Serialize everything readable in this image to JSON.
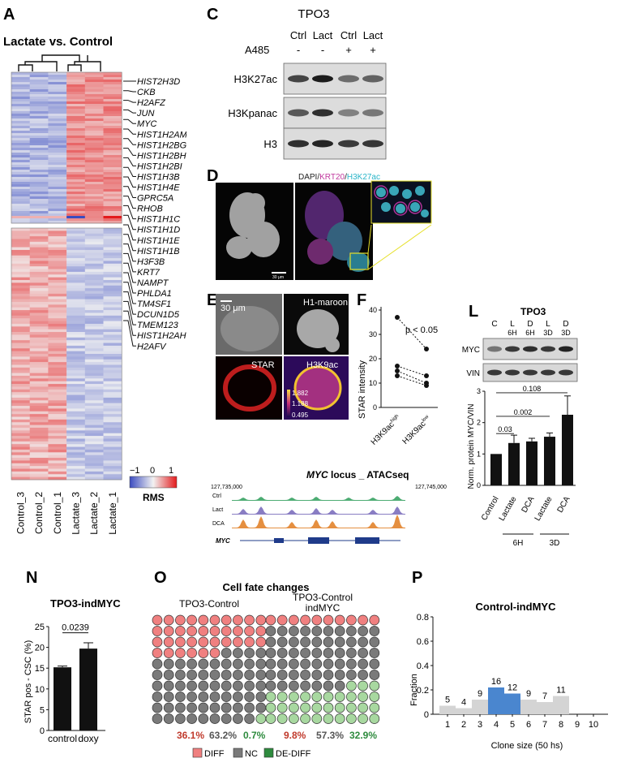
{
  "panels": {
    "A": {
      "letter": "A",
      "title": "Lactate vs. Control",
      "samples": [
        "Control_3",
        "Control_2",
        "Control_1",
        "Lactate_3",
        "Lactate_2",
        "Lactate_1"
      ],
      "genes": [
        "HIST2H3D",
        "CKB",
        "H2AFZ",
        "JUN",
        "MYC",
        "HIST1H2AM",
        "HIST1H2BG",
        "HIST1H2BH",
        "HIST1H2BI",
        "HIST1H3B",
        "HIST1H4E",
        "GPRC5A",
        "RHOB",
        "HIST1H1C",
        "HIST1H1D",
        "HIST1H1E",
        "HIST1H1B",
        "H3F3B",
        "KRT7",
        "NAMPT",
        "PHLDA1",
        "TM4SF1",
        "DCUN1D5",
        "TMEM123",
        "HIST1H2AH",
        "H2AFV"
      ],
      "scale_ticks": [
        "−1",
        "0",
        "1"
      ],
      "scale_label": "RMS",
      "scale_colors": [
        "#3b4cc0",
        "#f2f2f2",
        "#e31a1c"
      ]
    },
    "C": {
      "letter": "C",
      "title": "TPO3",
      "lanes": [
        "Ctrl",
        "Lact",
        "Ctrl",
        "Lact"
      ],
      "a485_label": "A485",
      "a485": [
        "-",
        "-",
        "+",
        "+"
      ],
      "blots": [
        "H3K27ac",
        "H3Kpanac",
        "H3"
      ]
    },
    "D": {
      "letter": "D",
      "stain": [
        "DAPI/",
        "KRT20",
        "/",
        "H3K27ac"
      ],
      "stain_colors": [
        "#222222",
        "#c0399e",
        "#222222",
        "#28b4c8"
      ],
      "scalebar": "30 μm"
    },
    "E": {
      "letter": "E",
      "scalebar": "30 μm",
      "labels": [
        "H1-maroon",
        "STAR",
        "H3K9ac"
      ],
      "intensity": [
        "1.882",
        "1.188",
        "0.495"
      ]
    },
    "F": {
      "letter": "F",
      "ylabel": "STAR intensity",
      "yticks": [
        "0",
        "10",
        "20",
        "30",
        "40"
      ],
      "pvalue": "p < 0.05",
      "x_labels": [
        [
          "H3K9ac",
          "high"
        ],
        [
          "H3K9ac",
          "low"
        ]
      ]
    },
    "L": {
      "letter": "L",
      "title": "TPO3",
      "lane_top": [
        "C",
        "L",
        "D",
        "L",
        "D"
      ],
      "lane_bot": [
        "",
        "6H",
        "6H",
        "3D",
        "3D"
      ],
      "blots": [
        "MYC",
        "VIN"
      ],
      "ylabel": "Norm. protein MYC/VIN",
      "yticks": [
        "0",
        "1",
        "2",
        "3"
      ],
      "categories": [
        "Control",
        "Lactate",
        "DCA",
        "Lactate",
        "DCA"
      ],
      "groups": [
        "6H",
        "3D"
      ],
      "pvalues": [
        "0.108",
        "0.002",
        "0.03"
      ]
    },
    "atac": {
      "title_italic": "MYC",
      "title_rest": " locus _ ATACseq",
      "coord_left": "127,735,000",
      "coord_right": "127,745,000",
      "tracks": [
        "Ctrl",
        "Lact",
        "DCA"
      ],
      "track_colors": [
        "#2e9e5a",
        "#7466b8",
        "#e07b1f"
      ],
      "gene": "MYC"
    },
    "N": {
      "letter": "N",
      "title": "TPO3-indMYC",
      "ylabel": "STAR pos - CSC (%)",
      "yticks": [
        "0",
        "5",
        "10",
        "15",
        "20",
        "25"
      ],
      "pvalue": "0.0239",
      "categories": [
        "control",
        "doxy"
      ]
    },
    "O": {
      "letter": "O",
      "title": "Cell fate changes",
      "groups": [
        {
          "title": [
            "TPO3-Control"
          ],
          "pct": [
            "36.1%",
            "63.2%",
            "0.7%"
          ]
        },
        {
          "title": [
            "TPO3-Control",
            "indMYC"
          ],
          "pct": [
            "9.8%",
            "57.3%",
            "32.9%"
          ]
        }
      ],
      "legend": [
        "DIFF",
        "NC",
        "DE-DIFF"
      ],
      "colors": {
        "diff": "#f08080",
        "nc": "#7a7a7a",
        "dediff": "#a8d8a0"
      },
      "pct_colors": [
        "#c0392b",
        "#555555",
        "#2e8b3e"
      ]
    },
    "P": {
      "letter": "P",
      "title": "Control-indMYC",
      "ylabel": "Fraction",
      "xlabel": "Clone size (50 hs)",
      "yticks": [
        "0",
        "0.2",
        "0.4",
        "0.6",
        "0.8"
      ],
      "xticks": [
        "1",
        "2",
        "3",
        "4",
        "5",
        "6",
        "7",
        "8",
        "9",
        "10"
      ]
    }
  },
  "chart_data": [
    {
      "type": "bar",
      "panel": "L",
      "categories": [
        "Control",
        "Lactate 6H",
        "DCA 6H",
        "Lactate 3D",
        "DCA 3D"
      ],
      "values": [
        1.0,
        1.35,
        1.4,
        1.55,
        2.25
      ],
      "errors": [
        0,
        0.25,
        0.1,
        0.12,
        0.6
      ],
      "ylim": [
        0,
        3
      ],
      "ylabel": "Norm. protein MYC/VIN"
    },
    {
      "type": "bar",
      "panel": "N",
      "categories": [
        "control",
        "doxy"
      ],
      "values": [
        15.2,
        19.7
      ],
      "errors": [
        0.3,
        1.4
      ],
      "ylim": [
        0,
        25
      ],
      "ylabel": "STAR pos - CSC (%)"
    },
    {
      "type": "bar",
      "panel": "P",
      "title": "Control-indMYC",
      "categories": [
        "1",
        "2",
        "3",
        "4",
        "5",
        "6",
        "7",
        "8",
        "9",
        "10"
      ],
      "values": [
        0.07,
        0.05,
        0.12,
        0.22,
        0.17,
        0.12,
        0.1,
        0.15,
        0,
        0
      ],
      "labels": [
        "5",
        "4",
        "9",
        "16",
        "12",
        "9",
        "7",
        "11",
        "",
        ""
      ],
      "ylim": [
        0,
        0.8
      ],
      "ylabel": "Fraction",
      "xlabel": "Clone size (50 hs)",
      "highlight": [
        "4",
        "5"
      ]
    },
    {
      "type": "scatter",
      "panel": "F",
      "ylabel": "STAR intensity",
      "ylim": [
        0,
        40
      ],
      "pairs": [
        [
          37,
          24
        ],
        [
          17,
          13
        ],
        [
          15,
          10
        ],
        [
          13,
          9
        ]
      ]
    }
  ]
}
